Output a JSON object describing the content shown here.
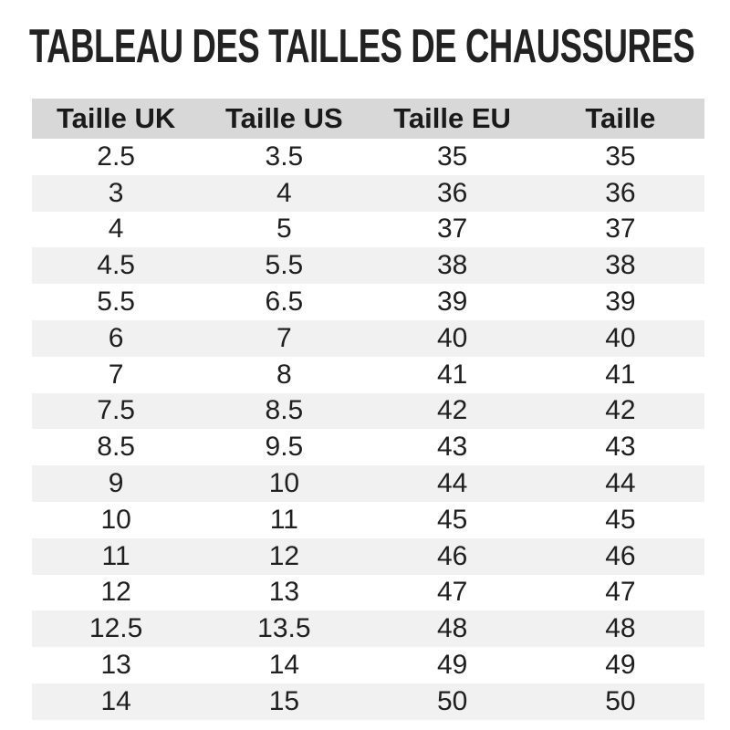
{
  "page_title": "TABLEAU DES TAILLES DE CHAUSSURES",
  "colors": {
    "title_text": "#222222",
    "header_bg": "#d8d8d8",
    "header_text": "#1a1a1a",
    "stripe_bg": "#f1f1f1",
    "cell_text": "#1f1f1f"
  },
  "chart_data": {
    "type": "table",
    "title": "TABLEAU DES TAILLES DE CHAUSSURES",
    "columns": [
      "Taille UK",
      "Taille US",
      "Taille EU",
      "Taille"
    ],
    "rows": [
      [
        "2.5",
        "3.5",
        "35",
        "35"
      ],
      [
        "3",
        "4",
        "36",
        "36"
      ],
      [
        "4",
        "5",
        "37",
        "37"
      ],
      [
        "4.5",
        "5.5",
        "38",
        "38"
      ],
      [
        "5.5",
        "6.5",
        "39",
        "39"
      ],
      [
        "6",
        "7",
        "40",
        "40"
      ],
      [
        "7",
        "8",
        "41",
        "41"
      ],
      [
        "7.5",
        "8.5",
        "42",
        "42"
      ],
      [
        "8.5",
        "9.5",
        "43",
        "43"
      ],
      [
        "9",
        "10",
        "44",
        "44"
      ],
      [
        "10",
        "11",
        "45",
        "45"
      ],
      [
        "11",
        "12",
        "46",
        "46"
      ],
      [
        "12",
        "13",
        "47",
        "47"
      ],
      [
        "12.5",
        "13.5",
        "48",
        "48"
      ],
      [
        "13",
        "14",
        "49",
        "49"
      ],
      [
        "14",
        "15",
        "50",
        "50"
      ]
    ],
    "layout": {
      "zebra_striping": true,
      "striped_rows": "even",
      "alignment": "center"
    }
  }
}
